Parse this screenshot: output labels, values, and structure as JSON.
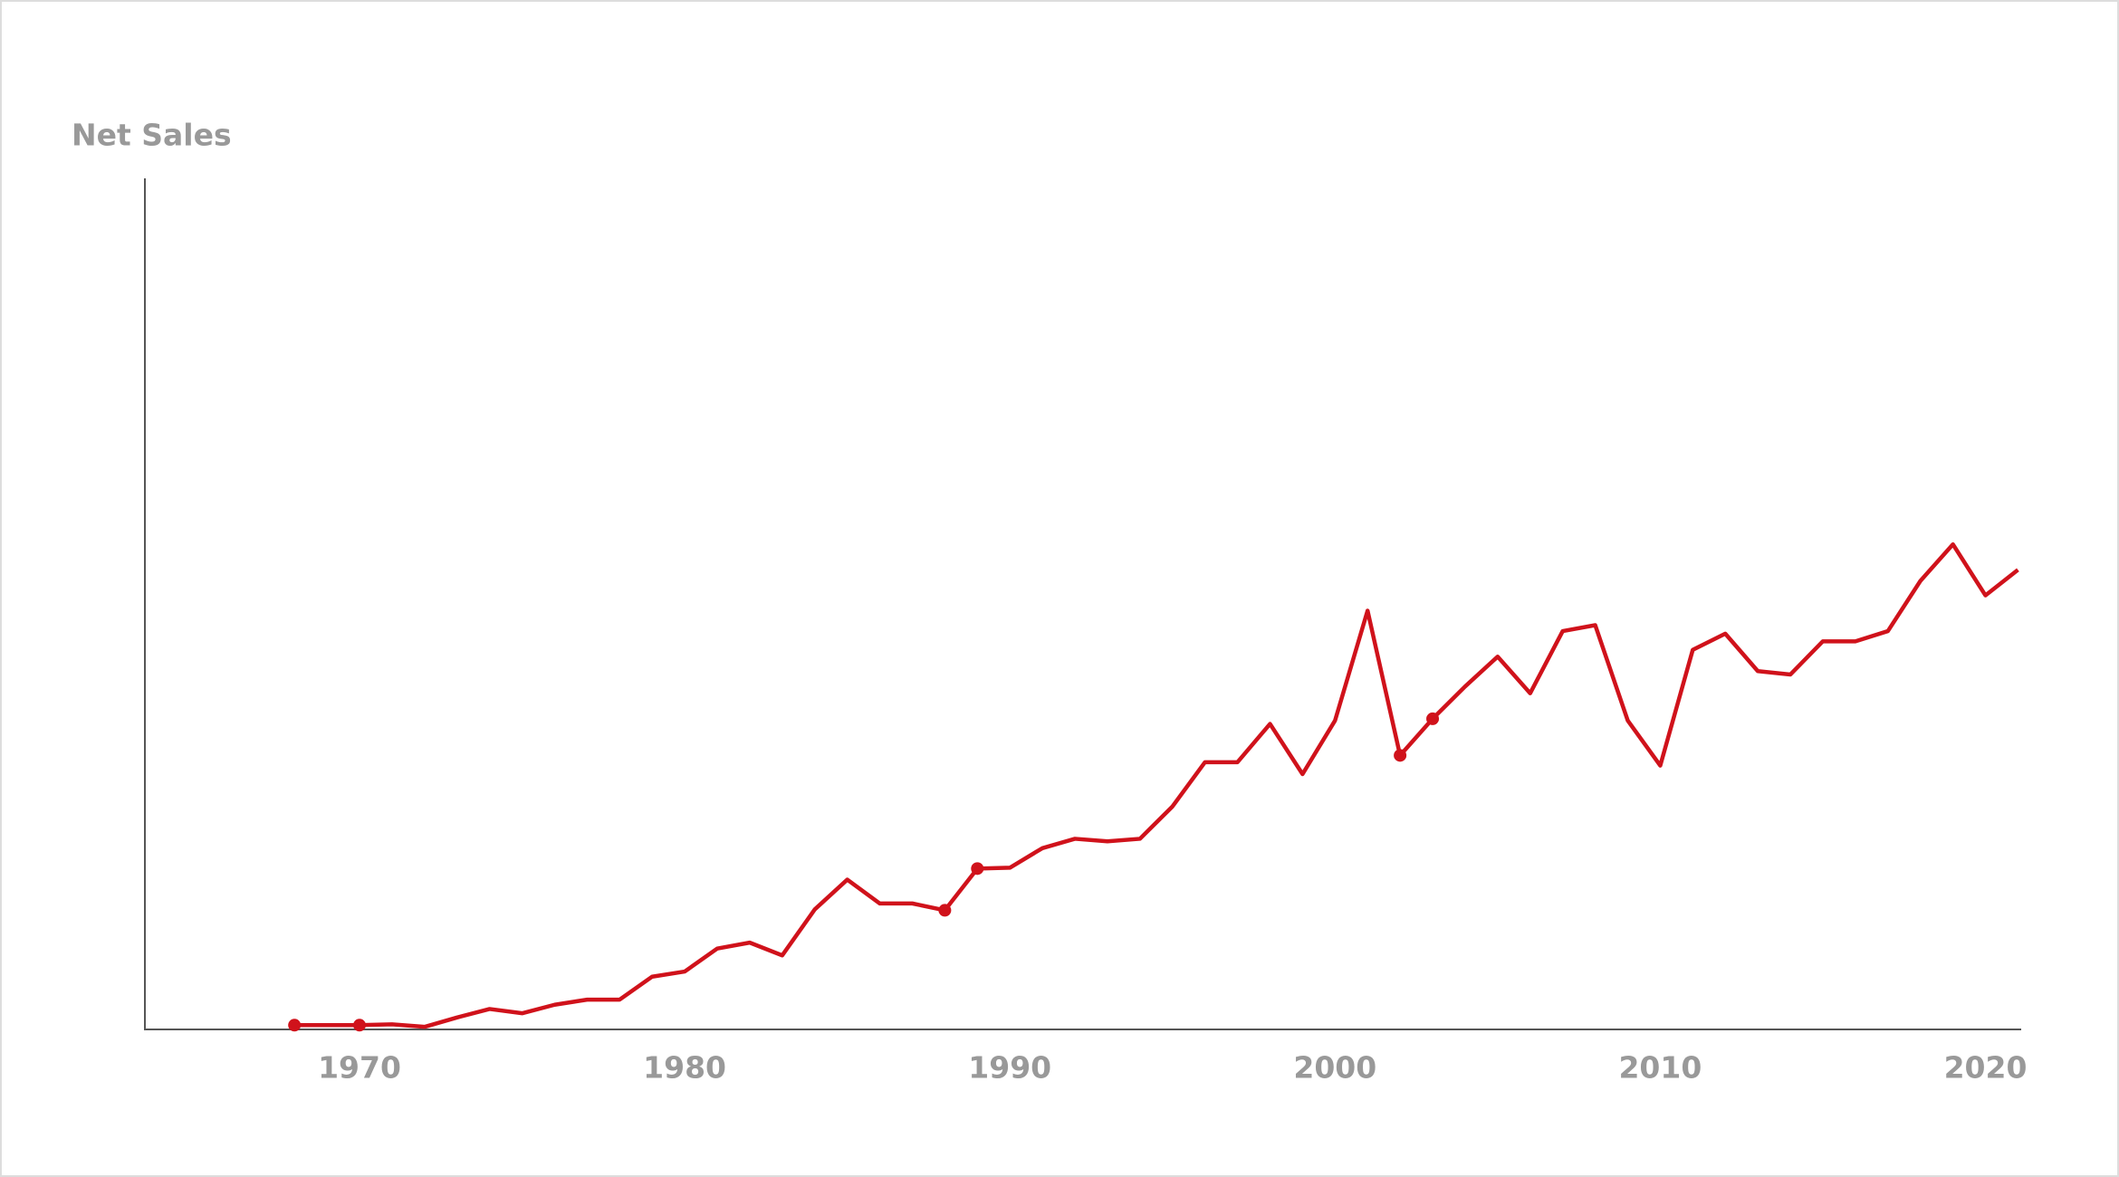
{
  "chart_data": {
    "type": "line",
    "y_label": "Net Sales",
    "x": [
      1968,
      1970,
      1971,
      1972,
      1973,
      1974,
      1975,
      1976,
      1977,
      1978,
      1979,
      1980,
      1981,
      1982,
      1983,
      1984,
      1985,
      1986,
      1987,
      1988,
      1989,
      1990,
      1991,
      1992,
      1993,
      1994,
      1995,
      1996,
      1997,
      1998,
      1999,
      2000,
      2001,
      2002,
      2003,
      2004,
      2005,
      2006,
      2007,
      2008,
      2009,
      2010,
      2011,
      2012,
      2013,
      2014,
      2015,
      2016,
      2017,
      2018,
      2019,
      2020,
      2021
    ],
    "series": [
      {
        "color": "#d0121b",
        "values": [
          0.5,
          0.5,
          0.6,
          0.3,
          1.4,
          2.4,
          1.9,
          2.9,
          3.5,
          3.5,
          6.2,
          6.8,
          9.5,
          10.2,
          8.7,
          14.1,
          17.6,
          14.8,
          14.8,
          14.0,
          18.9,
          19.0,
          21.3,
          22.4,
          22.1,
          22.4,
          26.2,
          31.4,
          31.4,
          35.9,
          30.0,
          36.3,
          49.2,
          32.2,
          36.5,
          40.3,
          43.8,
          39.5,
          46.8,
          47.5,
          36.3,
          31.0,
          44.6,
          46.5,
          42.1,
          41.7,
          45.6,
          45.6,
          46.8,
          52.7,
          57.0,
          51.0,
          54.0
        ]
      }
    ],
    "markers": [
      1968,
      1970,
      1988,
      1989,
      2002,
      2003
    ],
    "xlim": [
      1963.4,
      2021.1
    ],
    "xticks": [
      1970,
      1980,
      1990,
      2000,
      2010,
      2020
    ],
    "ylim": [
      0,
      100
    ],
    "grid": false
  }
}
